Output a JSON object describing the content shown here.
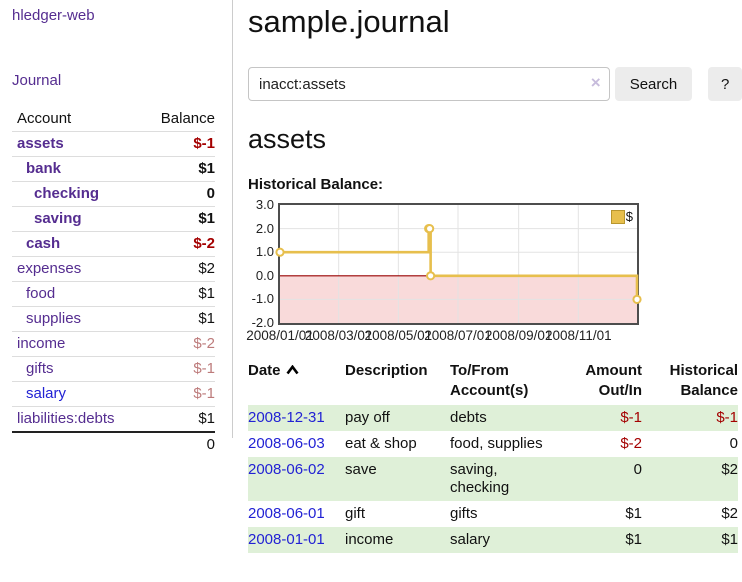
{
  "sidebar": {
    "app_title": "hledger-web",
    "journal_link": "Journal",
    "accounts_table": {
      "account_header": "Account",
      "balance_header": "Balance",
      "rows": [
        {
          "name": "assets",
          "indent": 1,
          "bold": true,
          "link": "purple",
          "balance": "$-1",
          "amount": "red"
        },
        {
          "name": "bank",
          "indent": 2,
          "bold": true,
          "link": "purple",
          "balance": "$1",
          "amount": "black"
        },
        {
          "name": "checking",
          "indent": 3,
          "bold": true,
          "link": "purple",
          "balance": "0",
          "amount": "black"
        },
        {
          "name": "saving",
          "indent": 3,
          "bold": true,
          "link": "purple",
          "balance": "$1",
          "amount": "black"
        },
        {
          "name": "cash",
          "indent": 2,
          "bold": true,
          "link": "purple",
          "balance": "$-2",
          "amount": "red"
        },
        {
          "name": "expenses",
          "indent": 1,
          "bold": false,
          "link": "purple",
          "balance": "$2",
          "amount": "black"
        },
        {
          "name": "food",
          "indent": 2,
          "bold": false,
          "link": "purple",
          "balance": "$1",
          "amount": "black"
        },
        {
          "name": "supplies",
          "indent": 2,
          "bold": false,
          "link": "purple",
          "balance": "$1",
          "amount": "black"
        },
        {
          "name": "income",
          "indent": 1,
          "bold": false,
          "link": "purple",
          "balance": "$-2",
          "amount": "rose"
        },
        {
          "name": "gifts",
          "indent": 2,
          "bold": false,
          "link": "purple",
          "balance": "$-1",
          "amount": "rose"
        },
        {
          "name": "salary",
          "indent": 2,
          "bold": false,
          "link": "blue",
          "balance": "$-1",
          "amount": "rose"
        },
        {
          "name": "liabilities:debts",
          "indent": 1,
          "bold": false,
          "link": "purple",
          "balance": "$1",
          "amount": "black"
        }
      ],
      "total": "0"
    }
  },
  "header": {
    "title": "sample.journal"
  },
  "search": {
    "query": "inacct:assets",
    "clear_icon": "×",
    "search_label": "Search",
    "help_label": "?"
  },
  "account_page": {
    "heading": "assets",
    "chart_title": "Historical Balance:"
  },
  "chart_data": {
    "type": "line",
    "step": true,
    "title": "Historical Balance:",
    "series": [
      {
        "name": "$",
        "points": [
          [
            "2008-01-01",
            1
          ],
          [
            "2008-06-01",
            2
          ],
          [
            "2008-06-02",
            2
          ],
          [
            "2008-06-03",
            0
          ],
          [
            "2008-12-31",
            -1
          ]
        ]
      }
    ],
    "x_range": [
      "2008-01-01",
      "2008-12-31"
    ],
    "ylim": [
      -2,
      3
    ],
    "yticks": [
      {
        "v": 3,
        "label": "3.0"
      },
      {
        "v": 2,
        "label": "2.0"
      },
      {
        "v": 1,
        "label": "1.0"
      },
      {
        "v": 0,
        "label": "0.0"
      },
      {
        "v": -1,
        "label": "-1.0"
      },
      {
        "v": -2,
        "label": "-2.0"
      }
    ],
    "xticks": [
      {
        "date": "2008-01-01",
        "label": "2008/01/01"
      },
      {
        "date": "2008-03-01",
        "label": "2008/03/01"
      },
      {
        "date": "2008-05-01",
        "label": "2008/05/01"
      },
      {
        "date": "2008-07-01",
        "label": "2008/07/01"
      },
      {
        "date": "2008-09-01",
        "label": "2008/09/01"
      },
      {
        "date": "2008-11-01",
        "label": "2008/11/01"
      }
    ],
    "legend": "$",
    "legend_position": "top-right",
    "grid": true,
    "line_color": "#e7bf4d",
    "marker_fill": "#ffffff",
    "negative_fill": "#f9dada",
    "zero_line_color": "#990000"
  },
  "register": {
    "columns": {
      "date": "Date",
      "description": "Description",
      "accounts": "To/From Account(s)",
      "amount": "Amount Out/In",
      "balance": "Historical Balance"
    },
    "rows": [
      {
        "date": "2008-12-31",
        "description": "pay off",
        "accounts": "debts",
        "amount": "$-1",
        "amount_color": "red",
        "balance": "$-1",
        "balance_color": "red"
      },
      {
        "date": "2008-06-03",
        "description": "eat & shop",
        "accounts": "food, supplies",
        "amount": "$-2",
        "amount_color": "red",
        "balance": "0",
        "balance_color": "black"
      },
      {
        "date": "2008-06-02",
        "description": "save",
        "accounts": "saving, checking",
        "amount": "0",
        "amount_color": "black",
        "balance": "$2",
        "balance_color": "black"
      },
      {
        "date": "2008-06-01",
        "description": "gift",
        "accounts": "gifts",
        "amount": "$1",
        "amount_color": "black",
        "balance": "$2",
        "balance_color": "black"
      },
      {
        "date": "2008-01-01",
        "description": "income",
        "accounts": "salary",
        "amount": "$1",
        "amount_color": "black",
        "balance": "$1",
        "balance_color": "black"
      }
    ]
  },
  "colors": {
    "link_purple": "#552d90",
    "link_blue": "#2222d4",
    "negative_red": "#a40000",
    "muted_rose": "#bd7b7b",
    "stripe_green": "#dff0d8",
    "chart_gold": "#e7bf4d",
    "chart_negative_pink": "#f9dada",
    "zero_line": "#990000"
  }
}
